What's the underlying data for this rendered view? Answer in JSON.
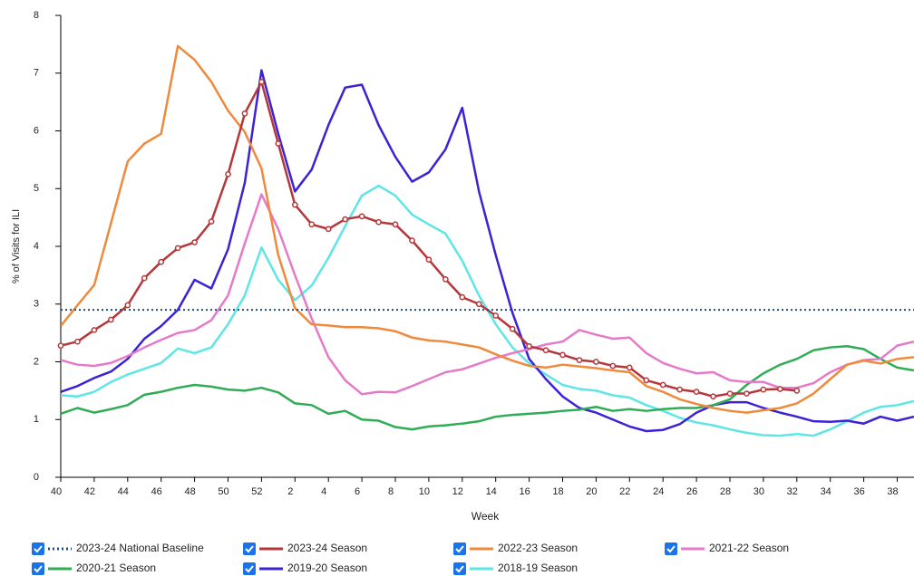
{
  "chart_data": {
    "type": "line",
    "x_label": "Week",
    "y_label": "% of Visits for ILI",
    "categories": [
      "40",
      null,
      "42",
      null,
      "44",
      null,
      "46",
      null,
      "48",
      null,
      "50",
      null,
      "52",
      null,
      "2",
      null,
      "4",
      null,
      "6",
      null,
      "8",
      null,
      "10",
      null,
      "12",
      null,
      "14",
      null,
      "16",
      null,
      "18",
      null,
      "20",
      null,
      "22",
      null,
      "24",
      null,
      "26",
      null,
      "28",
      null,
      "30",
      null,
      "32",
      null,
      "34",
      null,
      "36",
      null,
      "38",
      null
    ],
    "ylim": [
      0,
      8
    ],
    "yticks": [
      0,
      1,
      2,
      3,
      4,
      5,
      6,
      7,
      8
    ],
    "legend": "bottom",
    "baseline": {
      "name": "2023-24 National Baseline",
      "value": 2.9,
      "color": "#1f4e79",
      "style": "dotted"
    },
    "series": [
      {
        "name": "2023-24 Season",
        "color": "#b5373a",
        "markers": true,
        "values": [
          2.28,
          2.35,
          2.55,
          2.73,
          2.98,
          3.45,
          3.73,
          3.97,
          4.07,
          4.43,
          5.25,
          6.3,
          6.85,
          5.78,
          4.72,
          4.38,
          4.3,
          4.47,
          4.52,
          4.42,
          4.38,
          4.1,
          3.77,
          3.43,
          3.12,
          3.0,
          2.8,
          2.57,
          2.27,
          2.2,
          2.12,
          2.03,
          2.0,
          1.93,
          1.9,
          1.68,
          1.6,
          1.52,
          1.48,
          1.4,
          1.45,
          1.45,
          1.52,
          1.53,
          1.5,
          null,
          null,
          null,
          null,
          null,
          null,
          null
        ]
      },
      {
        "name": "2022-23 Season",
        "color": "#ef8a3c",
        "values": [
          2.62,
          2.98,
          3.33,
          4.4,
          5.47,
          5.78,
          5.95,
          7.47,
          7.23,
          6.85,
          6.35,
          5.98,
          5.35,
          3.85,
          2.93,
          2.65,
          2.63,
          2.6,
          2.6,
          2.58,
          2.53,
          2.42,
          2.37,
          2.35,
          2.3,
          2.25,
          2.13,
          2.02,
          1.93,
          1.9,
          1.95,
          1.92,
          1.89,
          1.85,
          1.82,
          1.58,
          1.48,
          1.35,
          1.27,
          1.2,
          1.15,
          1.12,
          1.16,
          1.2,
          1.28,
          1.45,
          1.7,
          1.95,
          2.02,
          1.97,
          2.05,
          2.08
        ]
      },
      {
        "name": "2021-22 Season",
        "color": "#e57ac8",
        "values": [
          2.03,
          1.95,
          1.93,
          1.98,
          2.1,
          2.25,
          2.38,
          2.5,
          2.55,
          2.72,
          3.15,
          4.05,
          4.9,
          4.3,
          3.5,
          2.75,
          2.08,
          1.68,
          1.44,
          1.48,
          1.47,
          1.58,
          1.7,
          1.82,
          1.87,
          1.97,
          2.07,
          2.15,
          2.22,
          2.3,
          2.35,
          2.55,
          2.47,
          2.4,
          2.42,
          2.15,
          1.98,
          1.88,
          1.8,
          1.82,
          1.68,
          1.65,
          1.65,
          1.55,
          1.55,
          1.63,
          1.82,
          1.95,
          2.03,
          2.05,
          2.28,
          2.35
        ]
      },
      {
        "name": "2020-21 Season",
        "color": "#2fac55",
        "values": [
          1.1,
          1.2,
          1.12,
          1.18,
          1.25,
          1.43,
          1.48,
          1.55,
          1.6,
          1.57,
          1.52,
          1.5,
          1.55,
          1.47,
          1.28,
          1.25,
          1.1,
          1.15,
          1.0,
          0.98,
          0.87,
          0.83,
          0.88,
          0.9,
          0.93,
          0.97,
          1.05,
          1.08,
          1.1,
          1.12,
          1.15,
          1.17,
          1.22,
          1.15,
          1.18,
          1.15,
          1.18,
          1.2,
          1.2,
          1.25,
          1.35,
          1.6,
          1.8,
          1.95,
          2.05,
          2.2,
          2.25,
          2.27,
          2.22,
          2.05,
          1.9,
          1.85
        ]
      },
      {
        "name": "2019-20 Season",
        "color": "#3b22d4",
        "values": [
          1.48,
          1.58,
          1.72,
          1.83,
          2.05,
          2.4,
          2.62,
          2.9,
          3.42,
          3.27,
          3.95,
          5.1,
          7.05,
          5.95,
          4.95,
          5.33,
          6.1,
          6.75,
          6.8,
          6.1,
          5.55,
          5.12,
          5.28,
          5.68,
          6.4,
          4.95,
          3.85,
          2.85,
          2.05,
          1.7,
          1.4,
          1.2,
          1.12,
          1.0,
          0.88,
          0.8,
          0.82,
          0.92,
          1.12,
          1.25,
          1.3,
          1.3,
          1.2,
          1.12,
          1.05,
          0.97,
          0.96,
          0.98,
          0.93,
          1.05,
          0.98,
          1.05
        ]
      },
      {
        "name": "2018-19 Season",
        "color": "#5ee6e6",
        "values": [
          1.42,
          1.4,
          1.48,
          1.65,
          1.78,
          1.88,
          1.98,
          2.23,
          2.15,
          2.25,
          2.65,
          3.15,
          3.98,
          3.42,
          3.07,
          3.32,
          3.8,
          4.35,
          4.88,
          5.05,
          4.88,
          4.55,
          4.38,
          4.22,
          3.75,
          3.15,
          2.65,
          2.25,
          1.97,
          1.78,
          1.6,
          1.53,
          1.5,
          1.42,
          1.38,
          1.25,
          1.15,
          1.03,
          0.95,
          0.9,
          0.83,
          0.77,
          0.73,
          0.72,
          0.75,
          0.72,
          0.83,
          0.97,
          1.12,
          1.22,
          1.25,
          1.32
        ]
      }
    ]
  }
}
